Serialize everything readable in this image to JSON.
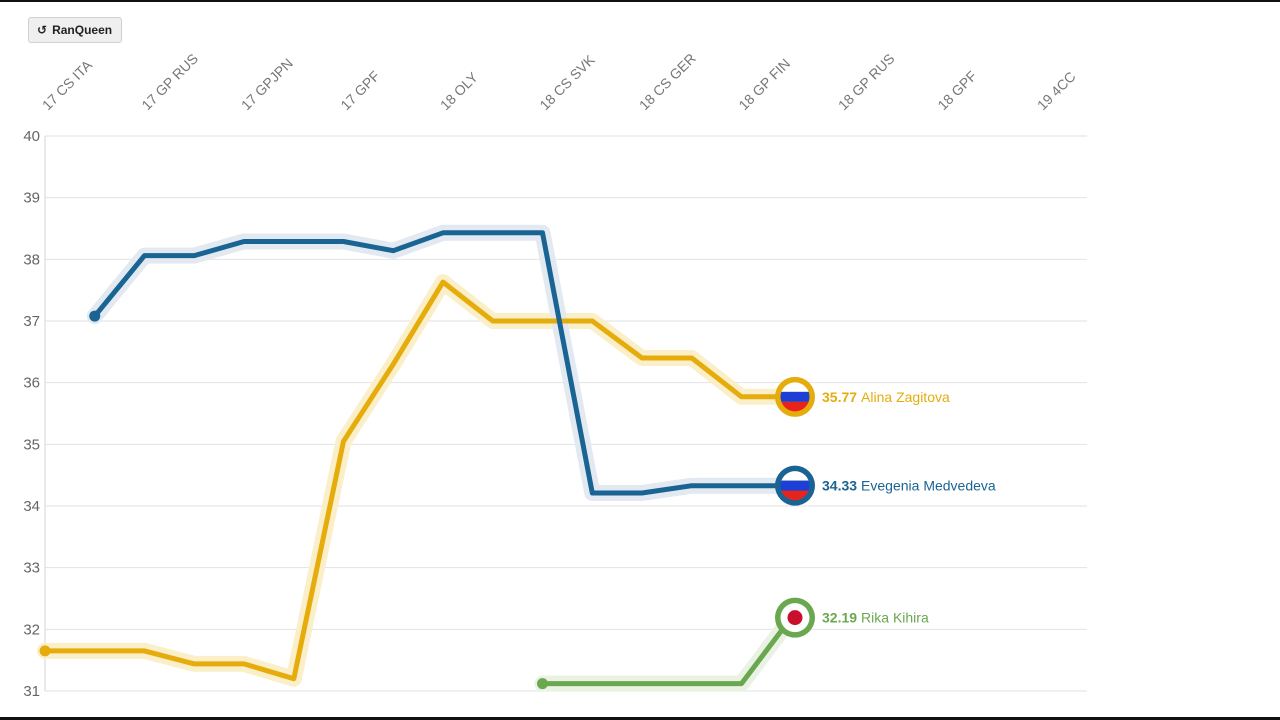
{
  "toolbar": {
    "replay_label": "RanQueen",
    "replay_icon": "replay-icon"
  },
  "chart_data": {
    "type": "line",
    "title": "",
    "xlabel": "",
    "ylabel": "",
    "categories": [
      "17 CS ITA",
      "17 GP RUS",
      "17 GPJPN",
      "17 GPF",
      "18 OLY",
      "18 CS SVK",
      "18 CS GER",
      "18 GP FIN",
      "18 GP RUS",
      "18 GPF",
      "19 4CC"
    ],
    "ylim": [
      31,
      40
    ],
    "yticks": [
      31,
      32,
      33,
      34,
      35,
      36,
      37,
      38,
      39,
      40
    ],
    "grid": true,
    "series": [
      {
        "name": "Alina Zagitova",
        "color": "#e6ac0c",
        "glow": "#fbefc9",
        "flag": "russia-flag",
        "end_value": "35.77",
        "points": [
          [
            0,
            31.65
          ],
          [
            1,
            31.65
          ],
          [
            1.5,
            31.44
          ],
          [
            2,
            31.44
          ],
          [
            2.5,
            31.2
          ],
          [
            3,
            35.05
          ],
          [
            3.5,
            36.3
          ],
          [
            4,
            37.63
          ],
          [
            4.5,
            37.0
          ],
          [
            5,
            37.0
          ],
          [
            5.5,
            37.0
          ],
          [
            6,
            36.4
          ],
          [
            6.5,
            36.4
          ],
          [
            7,
            35.77
          ],
          [
            7.35,
            35.77
          ]
        ]
      },
      {
        "name": "Evegenia Medvedeva",
        "color": "#1a6493",
        "glow": "#e3e9f1",
        "flag": "russia-flag",
        "end_value": "34.33",
        "points": [
          [
            0.5,
            37.08
          ],
          [
            1,
            38.06
          ],
          [
            1.5,
            38.06
          ],
          [
            2,
            38.29
          ],
          [
            2.5,
            38.29
          ],
          [
            3,
            38.29
          ],
          [
            3.5,
            38.14
          ],
          [
            4,
            38.43
          ],
          [
            4.5,
            38.43
          ],
          [
            5,
            38.43
          ],
          [
            5.5,
            34.21
          ],
          [
            6,
            34.21
          ],
          [
            6.5,
            34.33
          ],
          [
            7,
            34.33
          ],
          [
            7.35,
            34.33
          ]
        ]
      },
      {
        "name": "Rika Kihira",
        "color": "#6aa84f",
        "glow": "#e9f2e3",
        "flag": "japan-flag",
        "end_value": "32.19",
        "points": [
          [
            5,
            31.12
          ],
          [
            5.5,
            31.12
          ],
          [
            6,
            31.12
          ],
          [
            6.5,
            31.12
          ],
          [
            7,
            31.12
          ],
          [
            7.5,
            32.19
          ]
        ]
      }
    ]
  }
}
